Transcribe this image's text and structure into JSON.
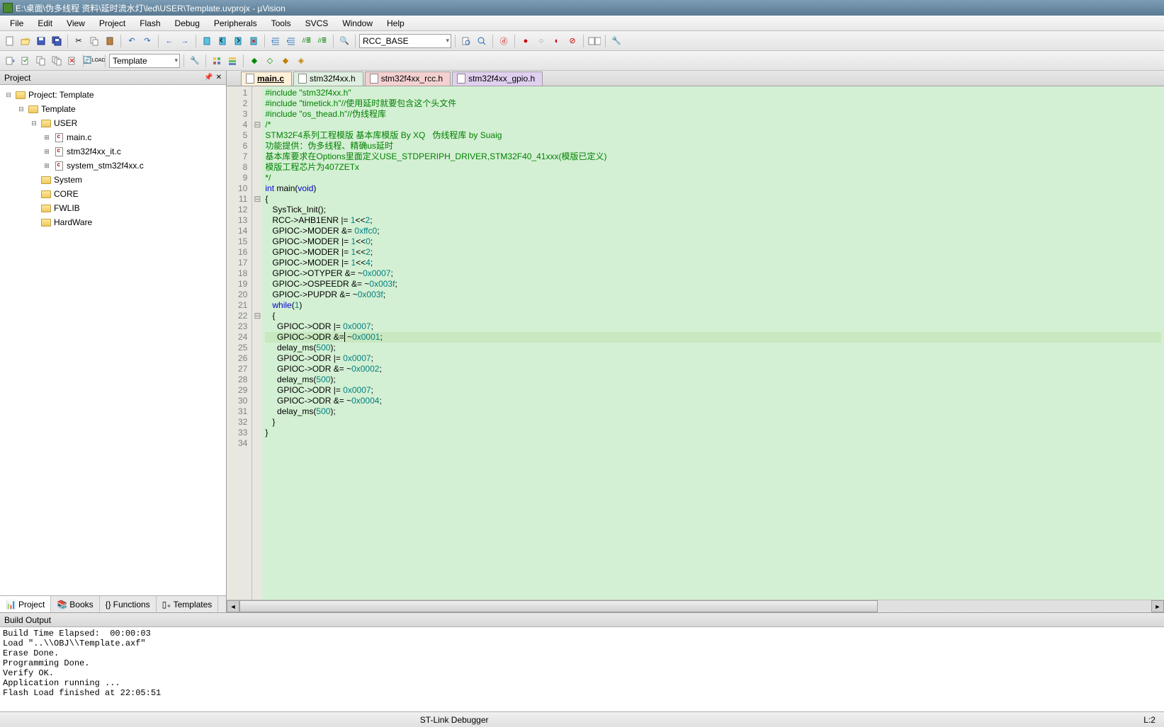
{
  "title": "E:\\桌面\\伪多线程 资料\\延时流水灯\\led\\USER\\Template.uvprojx - µVision",
  "menu": [
    "File",
    "Edit",
    "View",
    "Project",
    "Flash",
    "Debug",
    "Peripherals",
    "Tools",
    "SVCS",
    "Window",
    "Help"
  ],
  "toolbar2_target": "Template",
  "combo_symbol": "RCC_BASE",
  "project_pane_title": "Project",
  "tree": {
    "root": "Project: Template",
    "target": "Template",
    "groups": [
      {
        "name": "USER",
        "expanded": true,
        "files": [
          "main.c",
          "stm32f4xx_it.c",
          "system_stm32f4xx.c"
        ]
      },
      {
        "name": "System",
        "expanded": false
      },
      {
        "name": "CORE",
        "expanded": false
      },
      {
        "name": "FWLIB",
        "expanded": false
      },
      {
        "name": "HardWare",
        "expanded": false
      }
    ]
  },
  "proj_tabs": [
    {
      "icon": "📊",
      "label": "Project",
      "active": true
    },
    {
      "icon": "📚",
      "label": "Books"
    },
    {
      "icon": "{}",
      "label": "Functions"
    },
    {
      "icon": "▯₊",
      "label": "Templates"
    }
  ],
  "editor_tabs": [
    {
      "label": "main.c",
      "cls": "active"
    },
    {
      "label": "stm32f4xx.h",
      "cls": ""
    },
    {
      "label": "stm32f4xx_rcc.h",
      "cls": "rcc"
    },
    {
      "label": "stm32f4xx_gpio.h",
      "cls": "gpio"
    }
  ],
  "code": {
    "lines": [
      {
        "n": 1,
        "f": "",
        "html": "<span class='pp'>#include</span> <span class='cm'>\"stm32f4xx.h\"</span>"
      },
      {
        "n": 2,
        "f": "",
        "html": "<span class='pp'>#include</span> <span class='cm'>\"timetick.h\"//使用延时就要包含这个头文件</span>"
      },
      {
        "n": 3,
        "f": "",
        "html": "<span class='pp'>#include</span> <span class='cm'>\"os_thead.h\"//伪线程库</span>"
      },
      {
        "n": 4,
        "f": "⊟",
        "html": "<span class='cm'>/*</span>"
      },
      {
        "n": 5,
        "f": "",
        "html": "<span class='cm'>STM32F4系列工程模版 基本库模版 By XQ   伪线程库 by Suaig</span>"
      },
      {
        "n": 6,
        "f": "",
        "html": "<span class='cm'>功能提供：伪多线程、精确us延时</span>"
      },
      {
        "n": 7,
        "f": "",
        "html": "<span class='cm'>基本库要求在Options里面定义USE_STDPERIPH_DRIVER,STM32F40_41xxx(模版已定义)</span>"
      },
      {
        "n": 8,
        "f": "",
        "html": "<span class='cm'>模版工程芯片为407ZETx</span>"
      },
      {
        "n": 9,
        "f": "",
        "html": "<span class='cm'>*/</span>"
      },
      {
        "n": 10,
        "f": "",
        "html": "<span class='kw'>int</span> main(<span class='kw'>void</span>)"
      },
      {
        "n": 11,
        "f": "⊟",
        "html": "{"
      },
      {
        "n": 12,
        "f": "",
        "html": "   SysTick_Init();"
      },
      {
        "n": 13,
        "f": "",
        "html": "   RCC->AHB1ENR |= <span class='num'>1</span><<<span class='num'>2</span>;"
      },
      {
        "n": 14,
        "f": "",
        "html": "   GPIOC->MODER &= <span class='num'>0xffc0</span>;"
      },
      {
        "n": 15,
        "f": "",
        "html": "   GPIOC->MODER |= <span class='num'>1</span><<<span class='num'>0</span>;"
      },
      {
        "n": 16,
        "f": "",
        "html": "   GPIOC->MODER |= <span class='num'>1</span><<<span class='num'>2</span>;"
      },
      {
        "n": 17,
        "f": "",
        "html": "   GPIOC->MODER |= <span class='num'>1</span><<<span class='num'>4</span>;"
      },
      {
        "n": 18,
        "f": "",
        "html": "   GPIOC->OTYPER &= ~<span class='num'>0x0007</span>;"
      },
      {
        "n": 19,
        "f": "",
        "html": "   GPIOC->OSPEEDR &= ~<span class='num'>0x003f</span>;"
      },
      {
        "n": 20,
        "f": "",
        "html": "   GPIOC->PUPDR &= ~<span class='num'>0x003f</span>;"
      },
      {
        "n": 21,
        "f": "",
        "html": "   <span class='kw'>while</span>(<span class='num'>1</span>)"
      },
      {
        "n": 22,
        "f": "⊟",
        "html": "   {"
      },
      {
        "n": 23,
        "f": "",
        "html": "     GPIOC->ODR |= <span class='num'>0x0007</span>;"
      },
      {
        "n": 24,
        "f": "",
        "hl": true,
        "html": "     GPIOC->ODR &=<span style='border-left:1px solid #000'></span> ~<span class='num'>0x0001</span>;"
      },
      {
        "n": 25,
        "f": "",
        "html": "     delay_ms(<span class='num'>500</span>);"
      },
      {
        "n": 26,
        "f": "",
        "html": "     GPIOC->ODR |= <span class='num'>0x0007</span>;"
      },
      {
        "n": 27,
        "f": "",
        "html": "     GPIOC->ODR &= ~<span class='num'>0x0002</span>;"
      },
      {
        "n": 28,
        "f": "",
        "html": "     delay_ms(<span class='num'>500</span>);"
      },
      {
        "n": 29,
        "f": "",
        "html": "     GPIOC->ODR |= <span class='num'>0x0007</span>;"
      },
      {
        "n": 30,
        "f": "",
        "html": "     GPIOC->ODR &= ~<span class='num'>0x0004</span>;"
      },
      {
        "n": 31,
        "f": "",
        "html": "     delay_ms(<span class='num'>500</span>);"
      },
      {
        "n": 32,
        "f": "",
        "html": "   }"
      },
      {
        "n": 33,
        "f": "",
        "html": "}"
      },
      {
        "n": 34,
        "f": "",
        "html": ""
      }
    ]
  },
  "build_output_title": "Build Output",
  "build_output": "Build Time Elapsed:  00:00:03\nLoad \"..\\\\OBJ\\\\Template.axf\"\nErase Done.\nProgramming Done.\nVerify OK.\nApplication running ...\nFlash Load finished at 22:05:51",
  "status": {
    "debugger": "ST-Link Debugger",
    "pos": "L:2"
  }
}
